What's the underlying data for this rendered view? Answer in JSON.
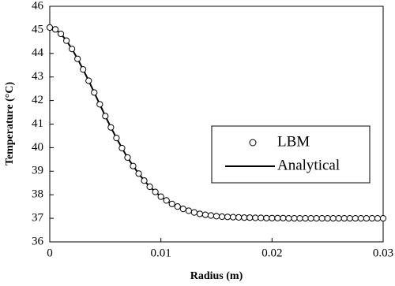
{
  "chart_data": {
    "type": "scatter-line",
    "x_label": "Radius (m)",
    "y_label": "Temperature (°C)",
    "x": [
      0,
      0.0005,
      0.001,
      0.0015,
      0.002,
      0.0025,
      0.003,
      0.0035,
      0.004,
      0.0045,
      0.005,
      0.0055,
      0.006,
      0.0065,
      0.007,
      0.0075,
      0.008,
      0.0085,
      0.009,
      0.0095,
      0.01,
      0.0105,
      0.011,
      0.0115,
      0.012,
      0.0125,
      0.013,
      0.0135,
      0.014,
      0.0145,
      0.015,
      0.0155,
      0.016,
      0.0165,
      0.017,
      0.0175,
      0.018,
      0.0185,
      0.019,
      0.0195,
      0.02,
      0.0205,
      0.021,
      0.0215,
      0.022,
      0.0225,
      0.023,
      0.0235,
      0.024,
      0.0245,
      0.025,
      0.0255,
      0.026,
      0.0265,
      0.027,
      0.0275,
      0.028,
      0.0285,
      0.029,
      0.0295,
      0.03
    ],
    "series": [
      {
        "name": "LBM",
        "color": "#000000",
        "style": "marker",
        "values": [
          45.1,
          45.02,
          44.83,
          44.54,
          44.19,
          43.77,
          43.32,
          42.84,
          42.34,
          41.84,
          41.34,
          40.86,
          40.41,
          39.98,
          39.58,
          39.22,
          38.9,
          38.6,
          38.34,
          38.12,
          37.92,
          37.76,
          37.61,
          37.5,
          37.4,
          37.32,
          37.25,
          37.19,
          37.15,
          37.12,
          37.09,
          37.07,
          37.06,
          37.05,
          37.04,
          37.03,
          37.03,
          37.02,
          37.02,
          37.01,
          37.01,
          37.01,
          37.01,
          37.0,
          37.0,
          37.0,
          37.0,
          37.0,
          37.0,
          37.0,
          37.0,
          37.0,
          37.0,
          37.0,
          37.0,
          37.0,
          37.0,
          37.0,
          37.0,
          37.0,
          37.0
        ]
      },
      {
        "name": "Analytical",
        "color": "#000000",
        "style": "line",
        "values": [
          45.1,
          45.02,
          44.83,
          44.54,
          44.19,
          43.77,
          43.32,
          42.84,
          42.34,
          41.84,
          41.34,
          40.86,
          40.41,
          39.98,
          39.58,
          39.22,
          38.9,
          38.6,
          38.34,
          38.12,
          37.92,
          37.76,
          37.61,
          37.5,
          37.4,
          37.32,
          37.25,
          37.19,
          37.15,
          37.12,
          37.09,
          37.07,
          37.06,
          37.05,
          37.04,
          37.03,
          37.03,
          37.02,
          37.02,
          37.01,
          37.01,
          37.01,
          37.01,
          37.0,
          37.0,
          37.0,
          37.0,
          37.0,
          37.0,
          37.0,
          37.0,
          37.0,
          37.0,
          37.0,
          37.0,
          37.0,
          37.0,
          37.0,
          37.0,
          37.0,
          37.0
        ]
      }
    ],
    "xlim": [
      0,
      0.03
    ],
    "xticks": [
      0,
      0.01,
      0.02,
      0.03
    ],
    "ylim": [
      36,
      46
    ],
    "yticks": [
      36,
      37,
      38,
      39,
      40,
      41,
      42,
      43,
      44,
      45,
      46
    ],
    "grid": false,
    "legend": "right"
  }
}
